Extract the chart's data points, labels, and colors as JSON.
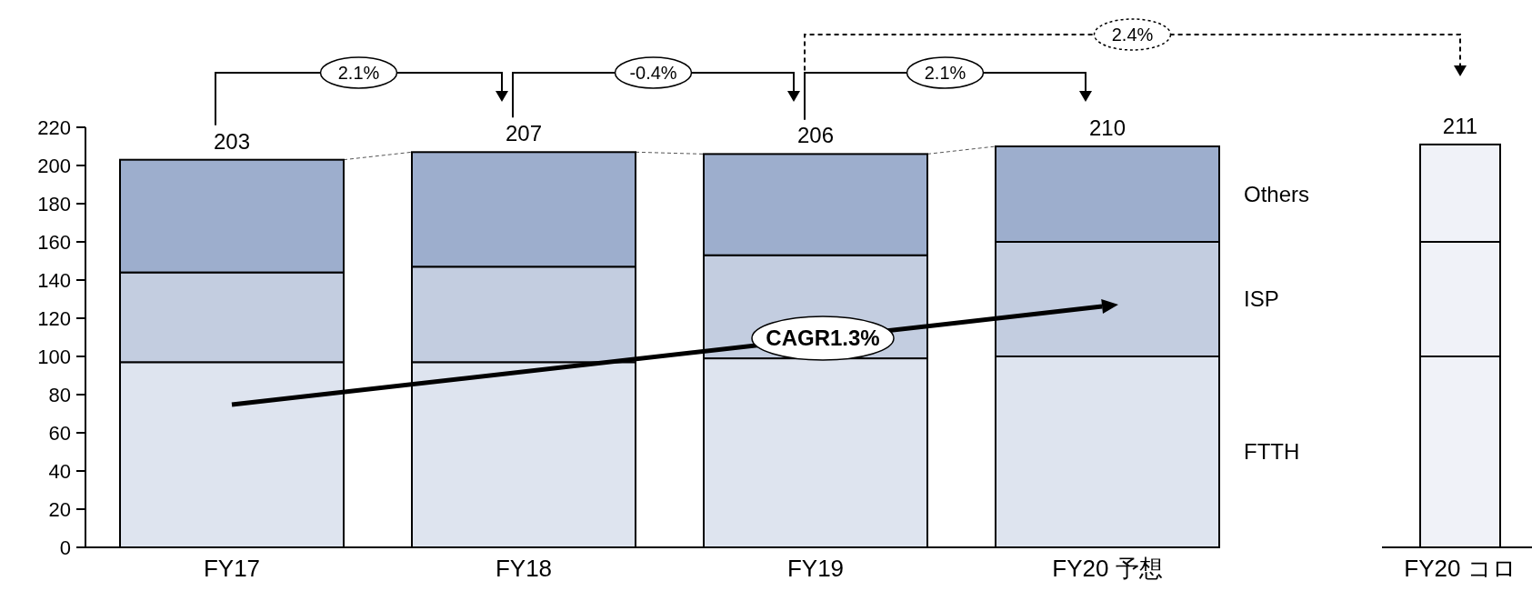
{
  "chart_data": {
    "type": "bar",
    "stacked": true,
    "categories": [
      "FY17",
      "FY18",
      "FY19",
      "FY20 予想",
      "FY20 コロ"
    ],
    "series": [
      {
        "name": "FTTH",
        "colors": [
          "#dee4ef",
          "#dee4ef",
          "#dee4ef",
          "#dee4ef",
          "#f0f2f8"
        ],
        "values": [
          97,
          97,
          99,
          100,
          100
        ]
      },
      {
        "name": "ISP",
        "colors": [
          "#c3cde0",
          "#c3cde0",
          "#c3cde0",
          "#c3cde0",
          "#f0f2f8"
        ],
        "values": [
          47,
          50,
          54,
          60,
          60
        ]
      },
      {
        "name": "Others",
        "colors": [
          "#9daecd",
          "#9daecd",
          "#9daecd",
          "#9daecd",
          "#f0f2f8"
        ],
        "values": [
          59,
          60,
          53,
          50,
          51
        ]
      }
    ],
    "ylim": [
      0,
      220
    ],
    "yticks": [
      0,
      20,
      40,
      60,
      80,
      100,
      120,
      140,
      160,
      180,
      200,
      220
    ],
    "totals": [
      "203",
      "207",
      "206",
      "210",
      "211"
    ],
    "annotations": [
      "2.1%",
      "-0.4%",
      "2.1%",
      "2.4%",
      "CAGR1.3%"
    ]
  }
}
